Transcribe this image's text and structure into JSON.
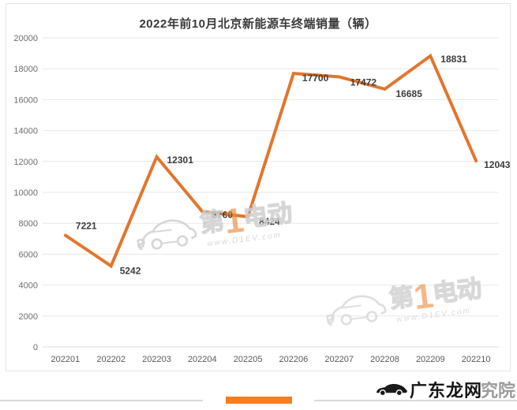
{
  "chart_data": {
    "type": "line",
    "title": "2022年前10月北京新能源车终端销量（辆）",
    "categories": [
      "202201",
      "202202",
      "202203",
      "202204",
      "202205",
      "202206",
      "202207",
      "202208",
      "202209",
      "202210"
    ],
    "values": [
      7221,
      5242,
      12301,
      8760,
      8424,
      17700,
      17472,
      16685,
      18831,
      12043
    ],
    "yticks": [
      0,
      2000,
      4000,
      6000,
      8000,
      10000,
      12000,
      14000,
      16000,
      18000,
      20000
    ],
    "ylim": [
      0,
      20000
    ],
    "xlabel": "",
    "ylabel": "",
    "grid": true,
    "legend": "none",
    "line_color": "#e2762d",
    "label_color": "#3c3c3c",
    "axis_text_color": "#6d6d6d",
    "gridline_color": "#e7e7e7"
  },
  "watermark": {
    "brand_pre": "第",
    "brand_num": "1",
    "brand_post": "电动",
    "url": "www.D1EV.com"
  },
  "footer": {
    "logo_black": "广东龙网",
    "logo_gray": "究院",
    "accent_color": "#f87d1e"
  }
}
